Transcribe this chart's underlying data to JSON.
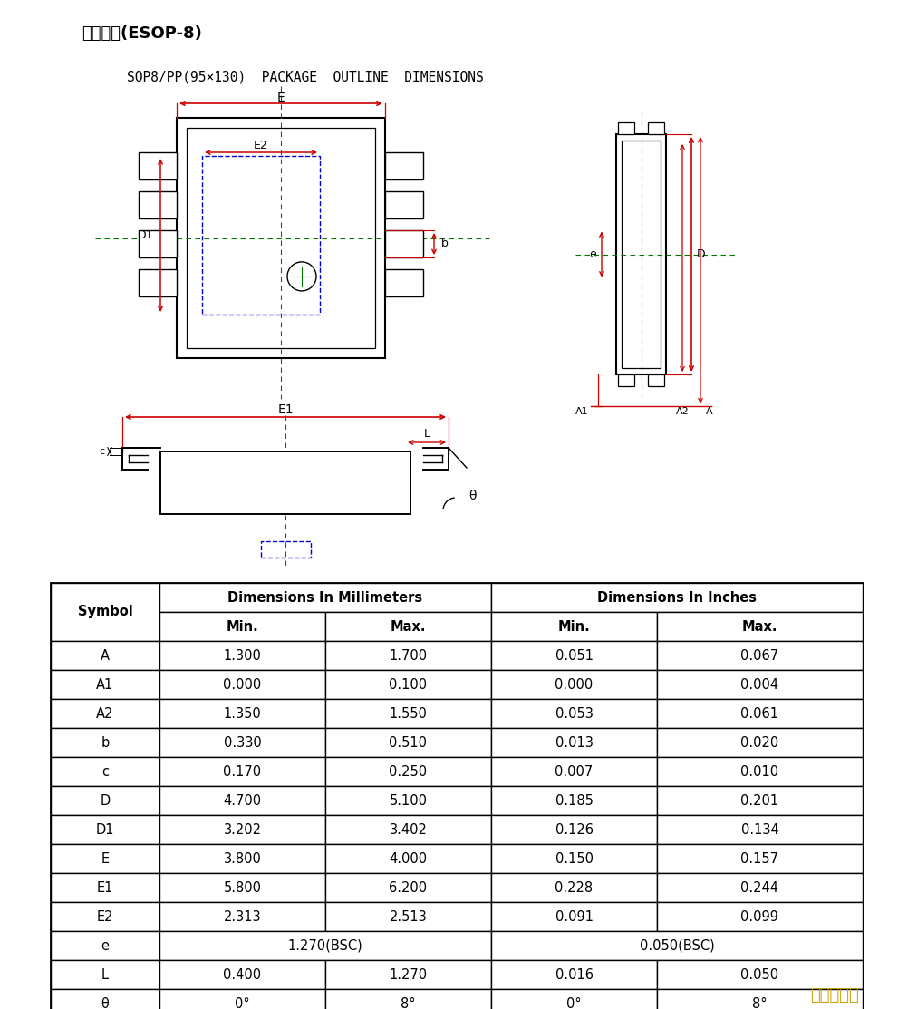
{
  "title_chinese": "封装信息(ESOP-8)",
  "title_drawing": "SOP8/PP(95×130)  PACKAGE  OUTLINE  DIMENSIONS",
  "watermark": "夸克微科技",
  "table_data": [
    [
      "A",
      "1.300",
      "1.700",
      "0.051",
      "0.067"
    ],
    [
      "A1",
      "0.000",
      "0.100",
      "0.000",
      "0.004"
    ],
    [
      "A2",
      "1.350",
      "1.550",
      "0.053",
      "0.061"
    ],
    [
      "b",
      "0.330",
      "0.510",
      "0.013",
      "0.020"
    ],
    [
      "c",
      "0.170",
      "0.250",
      "0.007",
      "0.010"
    ],
    [
      "D",
      "4.700",
      "5.100",
      "0.185",
      "0.201"
    ],
    [
      "D1",
      "3.202",
      "3.402",
      "0.126",
      "0.134"
    ],
    [
      "E",
      "3.800",
      "4.000",
      "0.150",
      "0.157"
    ],
    [
      "E1",
      "5.800",
      "6.200",
      "0.228",
      "0.244"
    ],
    [
      "E2",
      "2.313",
      "2.513",
      "0.091",
      "0.099"
    ],
    [
      "e",
      "1.270(BSC)",
      "",
      "0.050(BSC)",
      ""
    ],
    [
      "L",
      "0.400",
      "1.270",
      "0.016",
      "0.050"
    ],
    [
      "θ",
      "0°",
      "8°",
      "0°",
      "8°"
    ]
  ],
  "bg_color": "#ffffff",
  "red_color": "#cc0000",
  "green_color": "#007700",
  "blue_color": "#0000cc"
}
